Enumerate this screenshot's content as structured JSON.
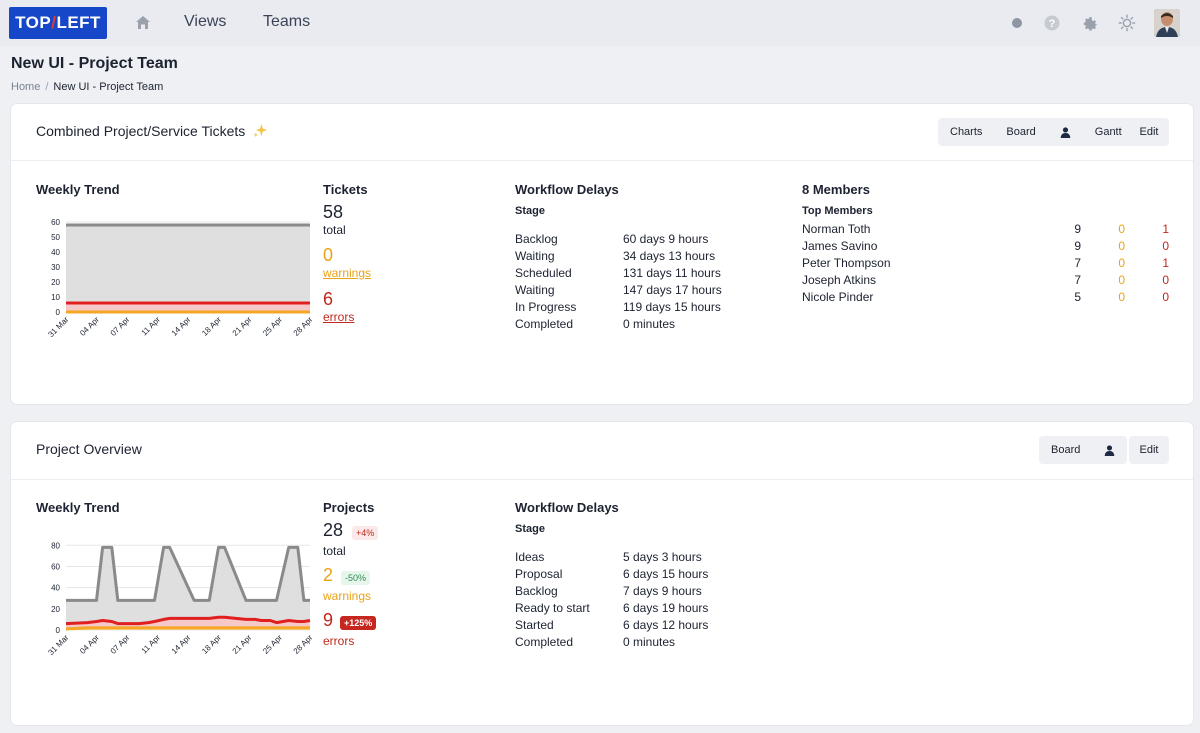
{
  "nav": {
    "logo_left": "TOP",
    "logo_slash": "/",
    "logo_right": "LEFT",
    "views": "Views",
    "teams": "Teams",
    "icons": [
      "home-icon",
      "status-dot-icon",
      "help-icon",
      "gear-icon",
      "sun-icon",
      "avatar"
    ]
  },
  "header": {
    "title": "New UI - Project Team",
    "breadcrumb": {
      "home": "Home",
      "sep": "/",
      "current": "New UI - Project Team"
    }
  },
  "tickets_card": {
    "title": "Combined Project/Service Tickets",
    "title_icon": "sparkle-icon",
    "buttons": {
      "charts": "Charts",
      "board": "Board",
      "gantt": "Gantt",
      "edit": "Edit"
    },
    "trend": {
      "title": "Weekly Trend",
      "chart_data": {
        "type": "area",
        "title": "Weekly Trend",
        "categories": [
          "31 Mar",
          "04 Apr",
          "07 Apr",
          "11 Apr",
          "14 Apr",
          "18 Apr",
          "21 Apr",
          "25 Apr",
          "28 Apr"
        ],
        "y_ticks": [
          "0",
          "10",
          "20",
          "30",
          "40",
          "50",
          "60"
        ],
        "ylim": [
          0,
          60
        ],
        "series": [
          {
            "color": "#8a8a8a",
            "values": [
              58,
              58,
              58,
              58,
              58,
              58,
              58,
              58,
              58
            ]
          },
          {
            "color": "#e02020",
            "values": [
              6,
              6,
              6,
              6,
              6,
              6,
              6,
              6,
              6
            ]
          },
          {
            "color": "#f5a623",
            "values": [
              0,
              0,
              0,
              0,
              0,
              0,
              0,
              0,
              0
            ]
          }
        ],
        "grid": true
      }
    },
    "stats": {
      "title": "Tickets",
      "total": "58",
      "total_lbl": "total",
      "warnings": "0",
      "warnings_lbl": "warnings",
      "errors": "6",
      "errors_lbl": "errors"
    },
    "delays": {
      "title": "Workflow Delays",
      "stage_hdr": "Stage",
      "rows": [
        {
          "stage": "Backlog",
          "time": "60 days 9 hours"
        },
        {
          "stage": "Waiting",
          "time": "34 days 13 hours"
        },
        {
          "stage": "Scheduled",
          "time": "131 days 11 hours"
        },
        {
          "stage": "Waiting",
          "time": "147 days 17 hours"
        },
        {
          "stage": "In Progress",
          "time": "119 days 15 hours"
        },
        {
          "stage": "Completed",
          "time": "0 minutes"
        }
      ]
    },
    "members": {
      "title": "8 Members",
      "top_hdr": "Top Members",
      "rows": [
        {
          "name": "Norman Toth",
          "total": "9",
          "warn": "0",
          "err": "1"
        },
        {
          "name": "James Savino",
          "total": "9",
          "warn": "0",
          "err": "0"
        },
        {
          "name": "Peter Thompson",
          "total": "7",
          "warn": "0",
          "err": "1"
        },
        {
          "name": "Joseph Atkins",
          "total": "7",
          "warn": "0",
          "err": "0"
        },
        {
          "name": "Nicole Pinder",
          "total": "5",
          "warn": "0",
          "err": "0"
        }
      ]
    }
  },
  "projects_card": {
    "title": "Project Overview",
    "buttons": {
      "board": "Board",
      "edit": "Edit"
    },
    "trend": {
      "title": "Weekly Trend",
      "chart_data": {
        "type": "area",
        "title": "Weekly Trend",
        "categories": [
          "31 Mar",
          "04 Apr",
          "07 Apr",
          "11 Apr",
          "14 Apr",
          "18 Apr",
          "21 Apr",
          "25 Apr",
          "28 Apr"
        ],
        "y_ticks": [
          "0",
          "20",
          "40",
          "60",
          "80"
        ],
        "ylim": [
          0,
          85
        ],
        "x": [
          0,
          0.7,
          1,
          1.2,
          1.5,
          1.7,
          2.4,
          2.7,
          2.9,
          3.2,
          3.4,
          4.2,
          4.5,
          4.7,
          5.0,
          5.2,
          5.9,
          6.2,
          6.4,
          6.7,
          6.9,
          7.3,
          7.6,
          7.8,
          8.0
        ],
        "series": [
          {
            "color": "#8a8a8a",
            "values": [
              28,
              28,
              28,
              78,
              78,
              28,
              28,
              28,
              28,
              78,
              78,
              28,
              28,
              28,
              78,
              78,
              28,
              28,
              28,
              28,
              28,
              78,
              78,
              28,
              28
            ]
          },
          {
            "color": "#e02020",
            "values": [
              6,
              7,
              8,
              9,
              8,
              6,
              6,
              7,
              8,
              10,
              11,
              11,
              11,
              11,
              12,
              12,
              10,
              10,
              9,
              9,
              7,
              9,
              8,
              8,
              9
            ]
          },
          {
            "color": "#f5a623",
            "values": [
              1,
              2,
              2,
              2,
              2,
              2,
              2,
              2,
              2,
              2,
              2,
              2,
              2,
              2,
              2,
              2,
              2,
              2,
              2,
              2,
              2,
              2,
              2,
              2,
              2
            ]
          }
        ],
        "grid": true
      }
    },
    "stats": {
      "title": "Projects",
      "total": "28",
      "total_lbl": "total",
      "total_badge": "+4%",
      "warnings": "2",
      "warnings_lbl": "warnings",
      "warnings_badge": "-50%",
      "errors": "9",
      "errors_lbl": "errors",
      "errors_badge": "+125%"
    },
    "delays": {
      "title": "Workflow Delays",
      "stage_hdr": "Stage",
      "rows": [
        {
          "stage": "Ideas",
          "time": "5 days 3 hours"
        },
        {
          "stage": "Proposal",
          "time": "6 days 15 hours"
        },
        {
          "stage": "Backlog",
          "time": "7 days 9 hours"
        },
        {
          "stage": "Ready to start",
          "time": "6 days 19 hours"
        },
        {
          "stage": "Started",
          "time": "6 days 12 hours"
        },
        {
          "stage": "Completed",
          "time": "0 minutes"
        }
      ]
    }
  },
  "colors": {
    "accent": "#1547c8",
    "warning": "#e8a317",
    "error": "#c0281e",
    "text": "#1c2230"
  }
}
